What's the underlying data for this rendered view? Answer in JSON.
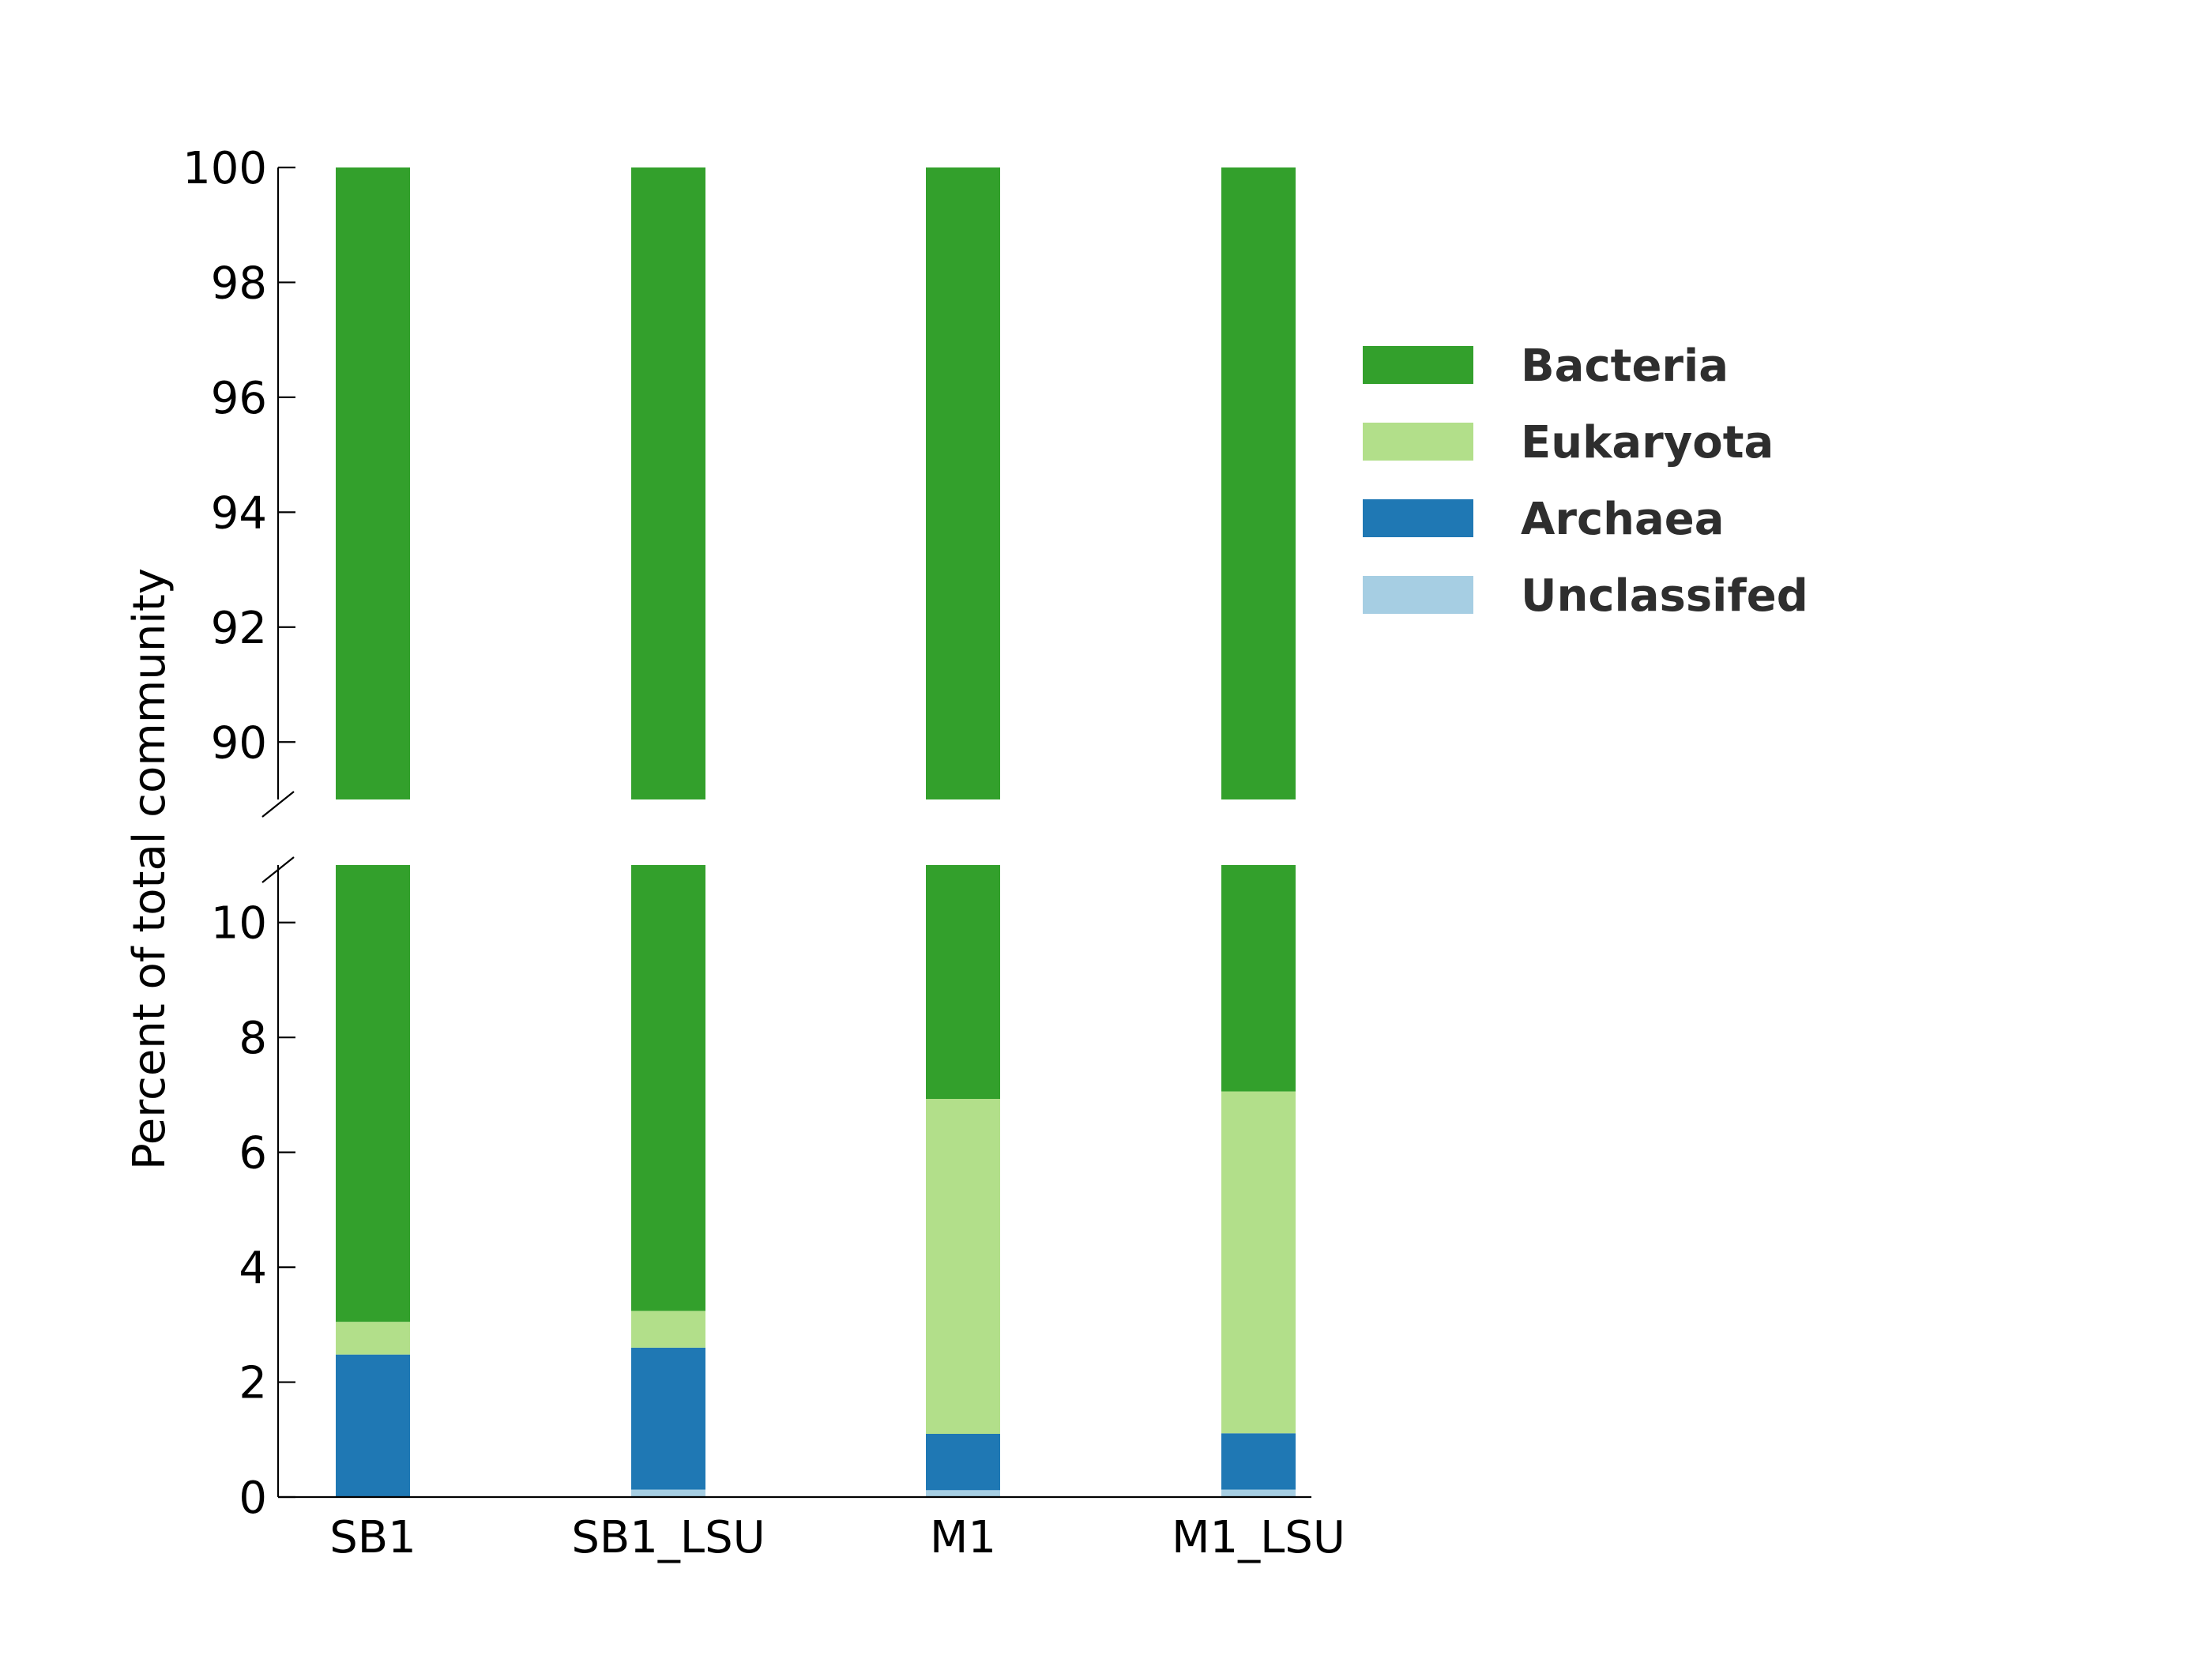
{
  "chart_data": {
    "type": "stacked-bar",
    "axis_break": true,
    "ylabel": "Percent of total community",
    "categories": [
      "SB1",
      "SB1_LSU",
      "M1",
      "M1_LSU"
    ],
    "series": [
      {
        "name": "Unclassifed",
        "color": "#a6cee3",
        "values": [
          0.0,
          0.13,
          0.12,
          0.13
        ]
      },
      {
        "name": "Archaea",
        "color": "#1f78b4",
        "values": [
          2.48,
          2.47,
          0.98,
          0.98
        ]
      },
      {
        "name": "Eukaryota",
        "color": "#b2df8a",
        "values": [
          0.57,
          0.64,
          5.83,
          5.95
        ]
      },
      {
        "name": "Bacteria",
        "color": "#33a02c",
        "values": [
          96.95,
          96.76,
          93.07,
          92.94
        ]
      }
    ],
    "legend_order": [
      "Bacteria",
      "Eukaryota",
      "Archaea",
      "Unclassifed"
    ],
    "legend_position": "right",
    "upper_panel": {
      "ylim": [
        89,
        100
      ],
      "yticks": [
        "90",
        "92",
        "94",
        "96",
        "98",
        "100"
      ]
    },
    "lower_panel": {
      "ylim": [
        0,
        11
      ],
      "yticks": [
        "0",
        "2",
        "4",
        "6",
        "8",
        "10"
      ]
    }
  }
}
